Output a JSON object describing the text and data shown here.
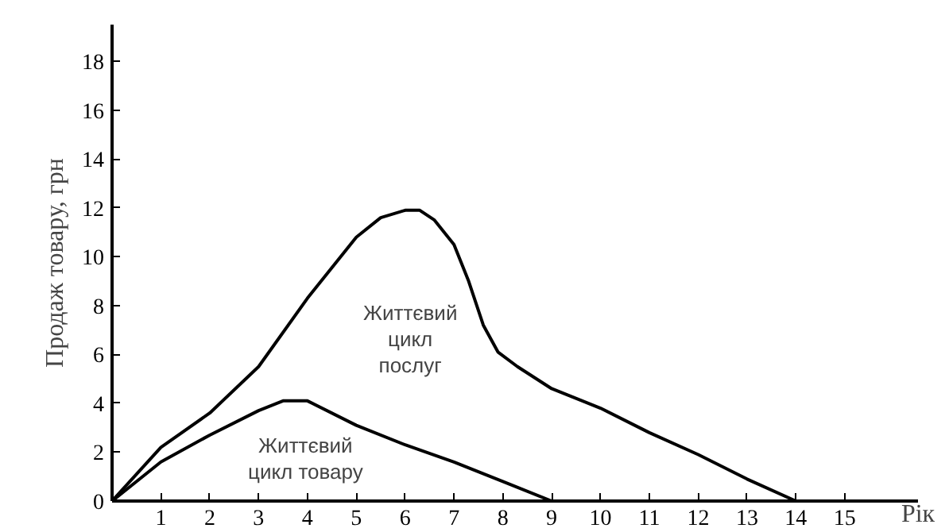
{
  "chart_data": {
    "type": "line",
    "ylabel": "Продаж товару, грн",
    "xlabel": "Рік",
    "xlim": [
      0,
      16.5
    ],
    "ylim": [
      0,
      19.5
    ],
    "xticks": [
      1,
      2,
      3,
      4,
      5,
      6,
      7,
      8,
      9,
      10,
      11,
      12,
      13,
      14,
      15
    ],
    "yticks": [
      0,
      2,
      4,
      6,
      8,
      10,
      12,
      14,
      16,
      18
    ],
    "grid": false,
    "marker": "none",
    "line_style": "solid",
    "series": [
      {
        "color": "#000000",
        "x": [
          0,
          1,
          2,
          3,
          4,
          5,
          5.5,
          6,
          6.3,
          6.6,
          7,
          7.3,
          7.6,
          7.9,
          8.3,
          9,
          10,
          11,
          12,
          13,
          14
        ],
        "values": [
          0,
          2.2,
          3.6,
          5.5,
          8.3,
          10.8,
          11.6,
          11.9,
          11.9,
          11.5,
          10.5,
          9,
          7.2,
          6.1,
          5.5,
          4.6,
          3.8,
          2.8,
          1.9,
          0.9,
          0
        ]
      },
      {
        "color": "#000000",
        "x": [
          0,
          1,
          2,
          3,
          3.5,
          4,
          5,
          6,
          7,
          8,
          9
        ],
        "values": [
          0,
          1.6,
          2.7,
          3.7,
          4.1,
          4.1,
          3.1,
          2.3,
          1.6,
          0.8,
          0
        ]
      }
    ],
    "annotations": [
      "Життєвий\nцикл\nпослуг",
      "Життєвий\nцикл товару"
    ]
  }
}
